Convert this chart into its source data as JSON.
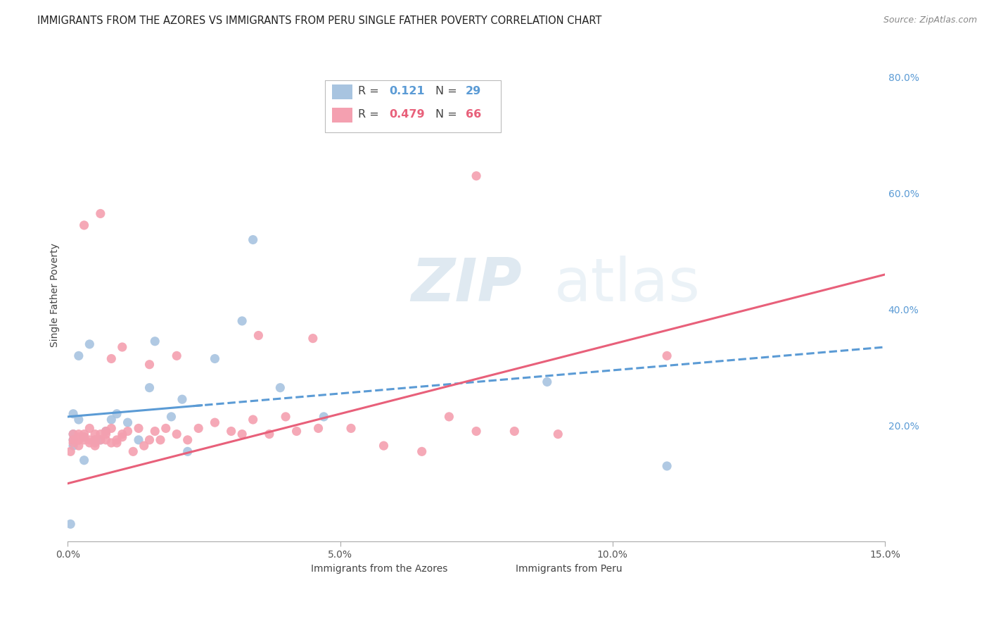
{
  "title": "IMMIGRANTS FROM THE AZORES VS IMMIGRANTS FROM PERU SINGLE FATHER POVERTY CORRELATION CHART",
  "source": "Source: ZipAtlas.com",
  "ylabel": "Single Father Poverty",
  "xlim": [
    0.0,
    0.15
  ],
  "ylim": [
    0.0,
    0.85
  ],
  "xticks": [
    0.0,
    0.05,
    0.1,
    0.15
  ],
  "xtick_labels": [
    "0.0%",
    "5.0%",
    "10.0%",
    "15.0%"
  ],
  "yticks_right": [
    0.2,
    0.4,
    0.6,
    0.8
  ],
  "ytick_right_labels": [
    "20.0%",
    "40.0%",
    "60.0%",
    "80.0%"
  ],
  "azores_color": "#a8c4e0",
  "peru_color": "#f4a0b0",
  "azores_line_color": "#5b9bd5",
  "peru_line_color": "#e8607a",
  "r_azores": 0.121,
  "n_azores": 29,
  "r_peru": 0.479,
  "n_peru": 66,
  "watermark": "ZIPatlas",
  "watermark_color": "#ccd9e8",
  "right_tick_color": "#5b9bd5",
  "azores_x": [
    0.0005,
    0.001,
    0.001,
    0.001,
    0.001,
    0.002,
    0.002,
    0.003,
    0.003,
    0.004,
    0.005,
    0.006,
    0.007,
    0.008,
    0.009,
    0.011,
    0.013,
    0.016,
    0.019,
    0.022,
    0.027,
    0.032,
    0.039,
    0.047,
    0.015,
    0.021,
    0.034,
    0.088,
    0.11
  ],
  "azores_y": [
    0.03,
    0.185,
    0.175,
    0.165,
    0.22,
    0.32,
    0.21,
    0.18,
    0.14,
    0.34,
    0.175,
    0.175,
    0.19,
    0.21,
    0.22,
    0.205,
    0.175,
    0.345,
    0.215,
    0.155,
    0.315,
    0.38,
    0.265,
    0.215,
    0.265,
    0.245,
    0.52,
    0.275,
    0.13
  ],
  "peru_x": [
    0.0005,
    0.001,
    0.001,
    0.001,
    0.002,
    0.002,
    0.002,
    0.002,
    0.002,
    0.003,
    0.003,
    0.003,
    0.004,
    0.004,
    0.004,
    0.005,
    0.005,
    0.005,
    0.005,
    0.006,
    0.006,
    0.007,
    0.007,
    0.007,
    0.008,
    0.008,
    0.009,
    0.009,
    0.01,
    0.01,
    0.011,
    0.012,
    0.013,
    0.014,
    0.015,
    0.016,
    0.017,
    0.018,
    0.02,
    0.022,
    0.024,
    0.027,
    0.03,
    0.032,
    0.034,
    0.037,
    0.04,
    0.042,
    0.046,
    0.052,
    0.058,
    0.065,
    0.07,
    0.075,
    0.082,
    0.09,
    0.003,
    0.006,
    0.01,
    0.02,
    0.035,
    0.045,
    0.075,
    0.11,
    0.015,
    0.008
  ],
  "peru_y": [
    0.155,
    0.175,
    0.17,
    0.185,
    0.165,
    0.175,
    0.18,
    0.175,
    0.185,
    0.18,
    0.175,
    0.185,
    0.195,
    0.17,
    0.175,
    0.185,
    0.17,
    0.165,
    0.175,
    0.185,
    0.175,
    0.185,
    0.175,
    0.19,
    0.195,
    0.17,
    0.17,
    0.175,
    0.18,
    0.185,
    0.19,
    0.155,
    0.195,
    0.165,
    0.175,
    0.19,
    0.175,
    0.195,
    0.185,
    0.175,
    0.195,
    0.205,
    0.19,
    0.185,
    0.21,
    0.185,
    0.215,
    0.19,
    0.195,
    0.195,
    0.165,
    0.155,
    0.215,
    0.19,
    0.19,
    0.185,
    0.545,
    0.565,
    0.335,
    0.32,
    0.355,
    0.35,
    0.63,
    0.32,
    0.305,
    0.315
  ]
}
